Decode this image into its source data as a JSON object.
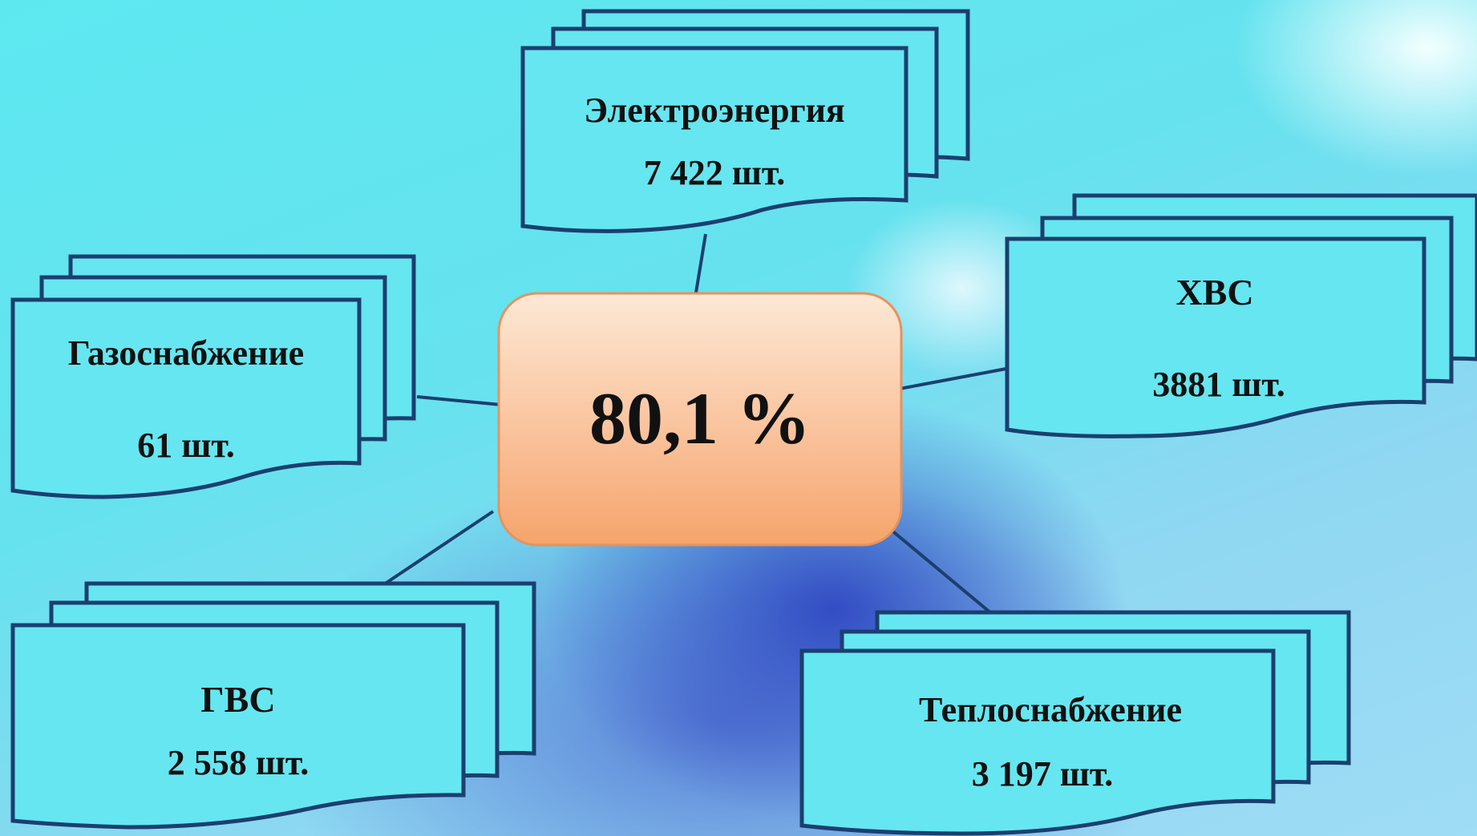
{
  "center": {
    "value": "80,1 %"
  },
  "nodes": [
    {
      "id": "electro",
      "title": "Электроэнергия",
      "count": "7 422 шт."
    },
    {
      "id": "gas",
      "title": "Газоснабжение",
      "count": "61 шт."
    },
    {
      "id": "hvs",
      "title": "ХВС",
      "count": "3881 шт."
    },
    {
      "id": "gvs",
      "title": "ГВС",
      "count": "2 558 шт."
    },
    {
      "id": "heat",
      "title": "Теплоснабжение",
      "count": "3 197 шт."
    }
  ],
  "colors": {
    "card_fill": "#66e6f0",
    "card_stroke": "#1b3f6e",
    "center_fill_top": "#fde6d2",
    "center_fill_bottom": "#f7a872",
    "center_stroke": "#e5935c",
    "connector": "#1b3f6e"
  }
}
